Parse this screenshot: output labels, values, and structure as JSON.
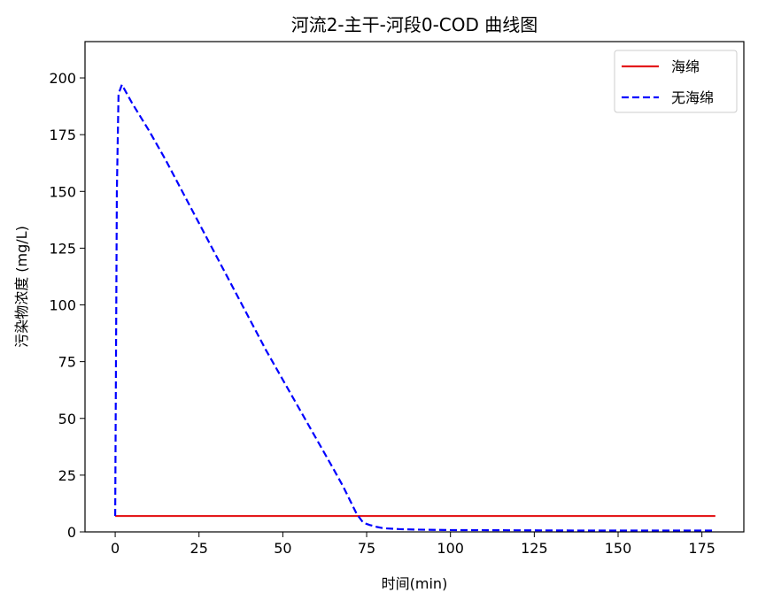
{
  "chart_data": {
    "type": "line",
    "title": "河流2-主干-河段0-COD 曲线图",
    "xlabel": "时间(min)",
    "ylabel": "污染物浓度 (mg/L)",
    "xlim": [
      -9,
      187.5
    ],
    "ylim": [
      0,
      216
    ],
    "xticks": [
      0,
      25,
      50,
      75,
      100,
      125,
      150,
      175
    ],
    "yticks": [
      0,
      25,
      50,
      75,
      100,
      125,
      150,
      175,
      200
    ],
    "grid": false,
    "legend_position": "top-right",
    "series": [
      {
        "name": "海绵",
        "color": "#e41a1c",
        "line_style": "solid",
        "x": [
          0,
          179
        ],
        "y": [
          7,
          7
        ]
      },
      {
        "name": "无海绵",
        "color": "#0000ff",
        "line_style": "dashed",
        "x": [
          0,
          0.5,
          1,
          1.5,
          2,
          5,
          10,
          15,
          20,
          25,
          30,
          35,
          40,
          45,
          50,
          55,
          60,
          65,
          68,
          70,
          72,
          73,
          74,
          76,
          78,
          80,
          85,
          90,
          100,
          120,
          140,
          160,
          179
        ],
        "y": [
          7,
          150,
          193,
          195,
          197,
          189,
          177,
          164,
          150,
          136,
          122,
          108,
          94,
          80,
          67,
          54,
          41,
          28,
          20,
          14,
          8,
          6,
          4,
          3,
          2.2,
          1.6,
          1.2,
          1.0,
          0.8,
          0.7,
          0.6,
          0.6,
          0.6
        ]
      }
    ]
  }
}
